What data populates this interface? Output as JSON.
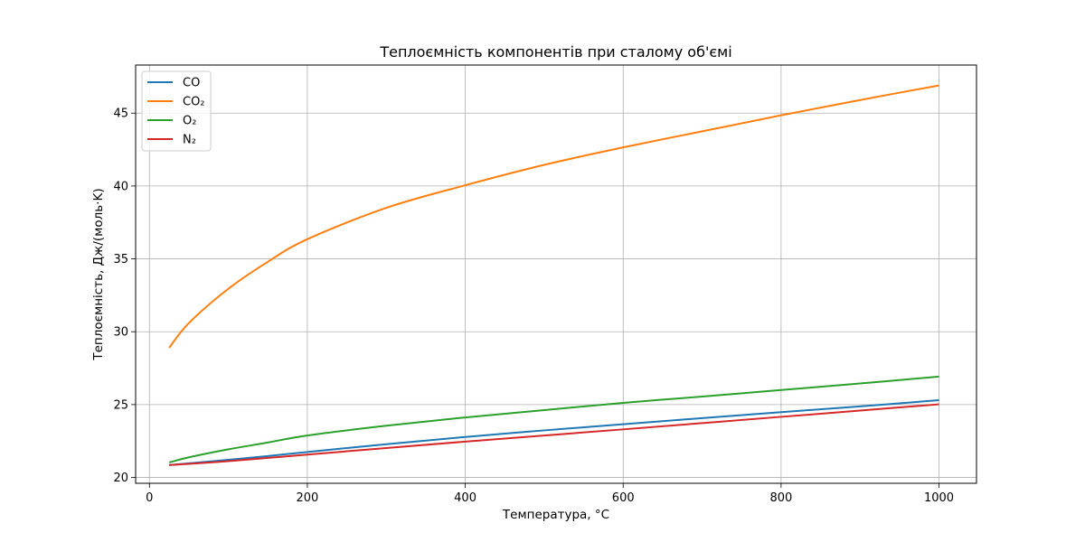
{
  "chart_data": {
    "type": "line",
    "title": "Теплоємність компонентів при сталому об'ємі",
    "xlabel": "Температура, °C",
    "ylabel": "Теплоємність, Дж/(моль·K)",
    "xlim": [
      -17.5,
      1047.5
    ],
    "ylim": [
      19.6,
      48.3
    ],
    "xticks": [
      0,
      200,
      400,
      600,
      800,
      1000
    ],
    "yticks": [
      20,
      25,
      30,
      35,
      40,
      45
    ],
    "grid": true,
    "legend_position": "top-left",
    "x": [
      25,
      50,
      100,
      150,
      200,
      300,
      400,
      500,
      600,
      700,
      800,
      900,
      1000
    ],
    "series": [
      {
        "name": "CO",
        "color": "#1f77b4",
        "values": [
          20.85,
          20.97,
          21.21,
          21.47,
          21.75,
          22.28,
          22.78,
          23.23,
          23.65,
          24.07,
          24.48,
          24.88,
          25.3
        ]
      },
      {
        "name": "CO₂",
        "color": "#ff7f0e",
        "values": [
          28.9,
          30.6,
          32.95,
          34.8,
          36.35,
          38.5,
          40.05,
          41.45,
          42.65,
          43.75,
          44.85,
          45.9,
          46.9
        ]
      },
      {
        "name": "O₂",
        "color": "#2ca02c",
        "values": [
          21.03,
          21.38,
          21.93,
          22.4,
          22.88,
          23.55,
          24.12,
          24.62,
          25.12,
          25.55,
          26.0,
          26.45,
          26.92
        ]
      },
      {
        "name": "N₂",
        "color": "#d62728",
        "values": [
          20.85,
          20.93,
          21.12,
          21.34,
          21.57,
          22.02,
          22.46,
          22.88,
          23.3,
          23.73,
          24.16,
          24.59,
          25.02
        ]
      }
    ]
  }
}
